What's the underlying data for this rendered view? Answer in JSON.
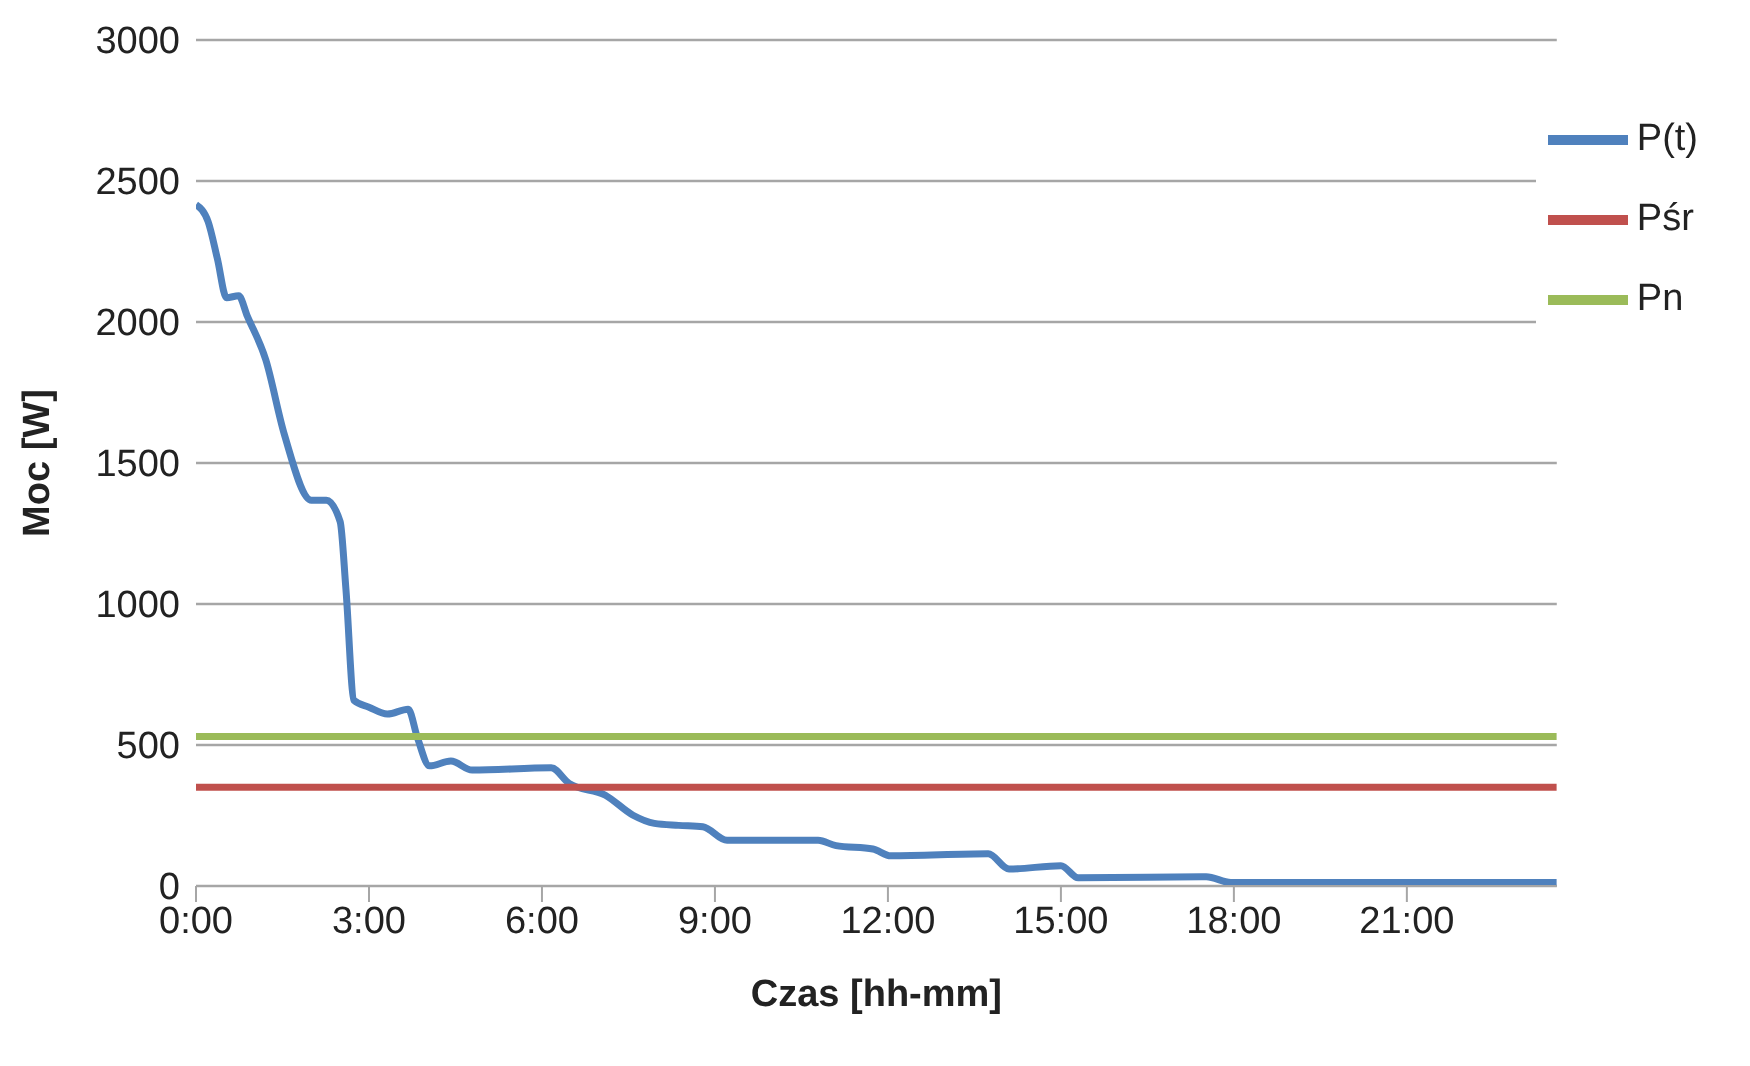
{
  "chart_data": {
    "type": "line",
    "xlabel": "Czas [hh-mm]",
    "ylabel": "Moc [W]",
    "xlim": [
      0,
      23.6
    ],
    "xticks": [
      {
        "value": 0,
        "label": "0:00"
      },
      {
        "value": 3,
        "label": "3:00"
      },
      {
        "value": 6,
        "label": "6:00"
      },
      {
        "value": 9,
        "label": "9:00"
      },
      {
        "value": 12,
        "label": "12:00"
      },
      {
        "value": 15,
        "label": "15:00"
      },
      {
        "value": 18,
        "label": "18:00"
      },
      {
        "value": 21,
        "label": "21:00"
      }
    ],
    "ylim": [
      0,
      3000
    ],
    "yticks": [
      0,
      500,
      1000,
      1500,
      2000,
      2500,
      3000
    ],
    "grid": "y",
    "legend": "top right",
    "marker": "none",
    "series": [
      {
        "name": "P(t)",
        "color": "#4f81bd",
        "x": [
          0,
          0.21,
          0.37,
          0.53,
          0.74,
          0.89,
          1.21,
          1.53,
          2.0,
          2.26,
          2.5,
          2.6,
          2.74,
          3.0,
          3.32,
          3.68,
          3.84,
          4.05,
          4.42,
          4.79,
          6.16,
          6.47,
          7.1,
          7.58,
          7.95,
          8.37,
          8.79,
          9.21,
          10.79,
          11.1,
          11.74,
          12.05,
          13.74,
          14.1,
          15.0,
          15.3,
          17.52,
          17.95,
          23.6
        ],
        "values": [
          2416,
          2356,
          2225,
          2086,
          2093,
          2021,
          1866,
          1603,
          1368,
          1368,
          1292,
          1053,
          658,
          634,
          610,
          627,
          526,
          426,
          443,
          411,
          419,
          364,
          322,
          251,
          222,
          215,
          210,
          162,
          162,
          143,
          131,
          107,
          114,
          60,
          72,
          29,
          33,
          12,
          12
        ]
      },
      {
        "name": "Pśr",
        "color": "#c0504d",
        "x": [
          0,
          23.6
        ],
        "values": [
          350,
          350
        ]
      },
      {
        "name": "Pn",
        "color": "#9bbb59",
        "x": [
          0,
          23.6
        ],
        "values": [
          530,
          530
        ]
      }
    ]
  }
}
